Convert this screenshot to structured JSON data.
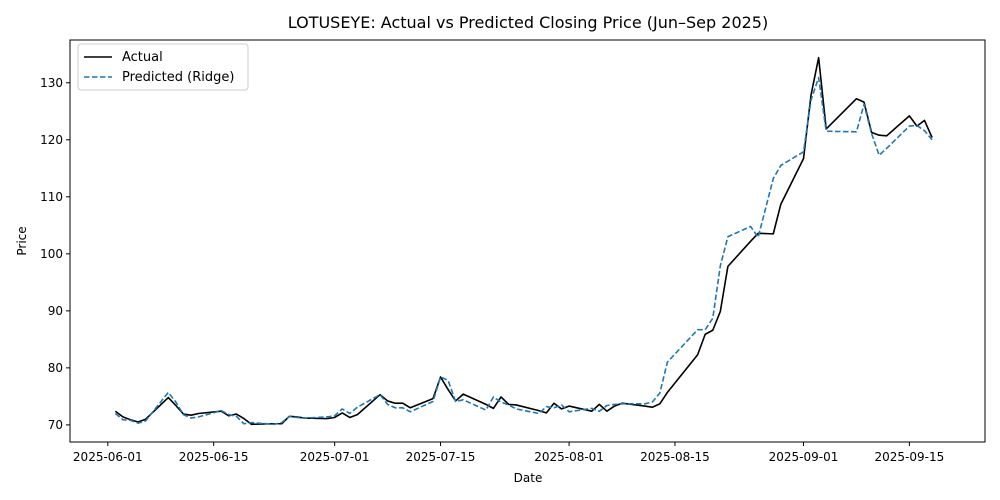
{
  "chart_data": {
    "type": "line",
    "title": "LOTUSEYE: Actual vs Predicted Closing Price (Jun–Sep 2025)",
    "xlabel": "Date",
    "ylabel": "Price",
    "xlim": [
      "2025-05-27",
      "2025-09-25"
    ],
    "ylim": [
      67,
      137.5
    ],
    "x_ticks": [
      "2025-06-01",
      "2025-06-15",
      "2025-07-01",
      "2025-07-15",
      "2025-08-01",
      "2025-08-15",
      "2025-09-01",
      "2025-09-15"
    ],
    "y_ticks": [
      70,
      80,
      90,
      100,
      110,
      120,
      130
    ],
    "legend_position": "top-left",
    "x": [
      "2025-06-02",
      "2025-06-03",
      "2025-06-04",
      "2025-06-05",
      "2025-06-06",
      "2025-06-09",
      "2025-06-10",
      "2025-06-11",
      "2025-06-12",
      "2025-06-13",
      "2025-06-16",
      "2025-06-17",
      "2025-06-18",
      "2025-06-19",
      "2025-06-20",
      "2025-06-23",
      "2025-06-24",
      "2025-06-25",
      "2025-06-26",
      "2025-06-27",
      "2025-06-30",
      "2025-07-01",
      "2025-07-02",
      "2025-07-03",
      "2025-07-04",
      "2025-07-07",
      "2025-07-08",
      "2025-07-09",
      "2025-07-10",
      "2025-07-11",
      "2025-07-14",
      "2025-07-15",
      "2025-07-16",
      "2025-07-17",
      "2025-07-18",
      "2025-07-21",
      "2025-07-22",
      "2025-07-23",
      "2025-07-24",
      "2025-07-25",
      "2025-07-28",
      "2025-07-29",
      "2025-07-30",
      "2025-07-31",
      "2025-08-01",
      "2025-08-04",
      "2025-08-05",
      "2025-08-06",
      "2025-08-07",
      "2025-08-08",
      "2025-08-11",
      "2025-08-12",
      "2025-08-13",
      "2025-08-14",
      "2025-08-18",
      "2025-08-19",
      "2025-08-20",
      "2025-08-21",
      "2025-08-22",
      "2025-08-25",
      "2025-08-26",
      "2025-08-28",
      "2025-08-29",
      "2025-09-01",
      "2025-09-02",
      "2025-09-03",
      "2025-09-04",
      "2025-09-08",
      "2025-09-09",
      "2025-09-10",
      "2025-09-11",
      "2025-09-12",
      "2025-09-15",
      "2025-09-16",
      "2025-09-17",
      "2025-09-18"
    ],
    "series": [
      {
        "name": "Actual",
        "color": "#000000",
        "style": "solid",
        "values": [
          72.4,
          71.4,
          70.9,
          70.5,
          71.0,
          74.8,
          73.4,
          71.9,
          71.7,
          72.0,
          72.4,
          71.6,
          71.9,
          71.1,
          70.1,
          70.2,
          70.2,
          71.5,
          71.4,
          71.2,
          71.1,
          71.3,
          72.1,
          71.3,
          71.8,
          75.3,
          74.2,
          73.8,
          73.8,
          73.0,
          74.6,
          78.4,
          76.2,
          74.2,
          75.4,
          73.6,
          72.9,
          74.9,
          73.6,
          73.5,
          72.5,
          72.1,
          73.8,
          72.8,
          73.3,
          72.4,
          73.6,
          72.4,
          73.3,
          73.8,
          73.3,
          73.1,
          73.7,
          75.7,
          82.3,
          85.9,
          86.6,
          89.9,
          97.8,
          102.2,
          103.6,
          103.5,
          108.7,
          116.7,
          127.9,
          134.4,
          121.9,
          127.2,
          126.6,
          121.3,
          120.8,
          120.7,
          124.2,
          122.4,
          123.4,
          120.4
        ]
      },
      {
        "name": "Predicted (Ridge)",
        "color": "#1f77b4",
        "style": "dashed",
        "values": [
          72.0,
          70.9,
          70.8,
          70.3,
          70.7,
          75.7,
          74.0,
          71.8,
          71.2,
          71.4,
          72.5,
          71.8,
          71.5,
          70.2,
          70.4,
          70.1,
          70.4,
          71.5,
          71.3,
          71.2,
          71.4,
          71.6,
          72.8,
          72.0,
          73.1,
          75.3,
          73.6,
          73.0,
          73.0,
          72.3,
          74.1,
          78.4,
          77.8,
          74.1,
          74.4,
          72.6,
          74.9,
          74.0,
          73.5,
          72.8,
          72.0,
          73.2,
          73.0,
          73.5,
          72.3,
          72.9,
          72.4,
          73.4,
          73.6,
          73.7,
          73.7,
          74.0,
          75.6,
          81.0,
          86.7,
          86.7,
          88.7,
          97.9,
          103.0,
          104.8,
          102.9,
          113.2,
          115.5,
          117.9,
          127.0,
          130.9,
          121.5,
          121.4,
          126.2,
          121.1,
          117.3,
          118.5,
          122.4,
          122.5,
          121.6,
          120.0
        ]
      }
    ]
  }
}
